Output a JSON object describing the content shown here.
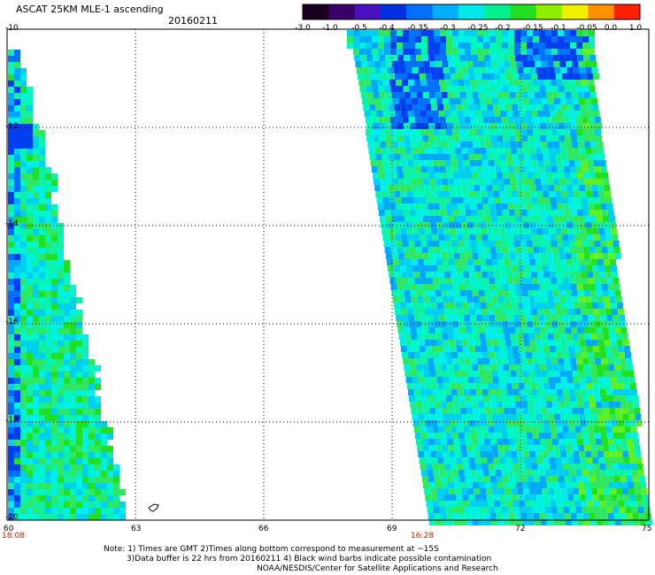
{
  "header": {
    "title": "ASCAT 25KM MLE-1 ascending",
    "date": "20160211"
  },
  "colorbar": {
    "labels": [
      "-3.0",
      "-1.0",
      "-0.5",
      "-0.4",
      "-0.35",
      "-0.3",
      "-0.25",
      "-0.2",
      "-0.15",
      "-0.1",
      "-0.05",
      "0.0",
      "1.0"
    ],
    "colors": [
      "#1a0020",
      "#3a006a",
      "#4a10c0",
      "#0030e0",
      "#0070ff",
      "#00b0ff",
      "#00e8e8",
      "#00f090",
      "#20e020",
      "#90f000",
      "#f0f000",
      "#ff9000",
      "#ff2000"
    ]
  },
  "axes": {
    "lat_labels": [
      "-10",
      "-12",
      "-14",
      "-16",
      "-18",
      "-20"
    ],
    "lon_labels": [
      "60",
      "63",
      "66",
      "69",
      "72",
      "75"
    ],
    "times": [
      "18:08",
      "16:28"
    ]
  },
  "map_data": {
    "lat_range": [
      -20,
      -10
    ],
    "lon_range": [
      60,
      75
    ],
    "grid": true
  },
  "footer": {
    "line1": "Note: 1) Times are GMT 2)Times along bottom correspond to measurement at ~15S",
    "line2": "3)Data buffer is 22 hrs from 20160211 4) Black wind barbs indicate possible contamination",
    "line3": "NOAA/NESDIS/Center for Satellite Applications and Research"
  }
}
